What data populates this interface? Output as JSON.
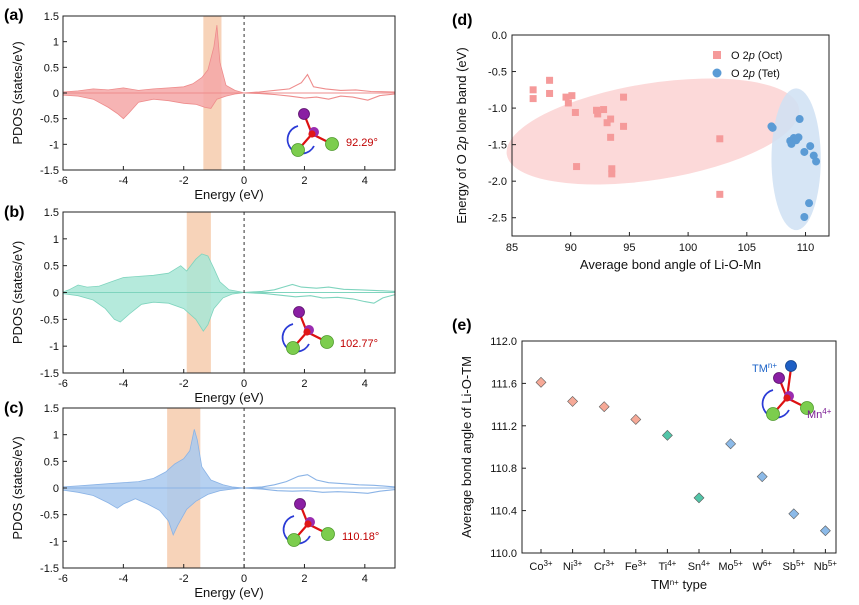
{
  "panels": {
    "a": {
      "label": "(a)",
      "angle_text": "92.29°"
    },
    "b": {
      "label": "(b)",
      "angle_text": "102.77°"
    },
    "c": {
      "label": "(c)",
      "angle_text": "110.18°"
    },
    "d": {
      "label": "(d)"
    },
    "e": {
      "label": "(e)"
    }
  },
  "pdos_common": {
    "xlabel": "Energy (eV)",
    "ylabel": "PDOS (states/eV)",
    "xlim": [
      -6,
      5
    ],
    "ylim": [
      -1.5,
      1.5
    ],
    "xticks": [
      -6,
      -4,
      -2,
      0,
      2,
      4
    ],
    "yticks": [
      -1.5,
      -1,
      -0.5,
      0,
      0.5,
      1,
      1.5
    ],
    "ytick_labels": [
      "-1.5",
      "-1",
      "-0.5",
      "0",
      "0.5",
      "1",
      "1.5"
    ],
    "xtick_labels": [
      "-6",
      "-4",
      "-2",
      "0",
      "2",
      "4"
    ],
    "band_color": "#f7d3b9"
  },
  "annot_e": {
    "tm_label": "TM",
    "tm_sup": "n+",
    "mn_label": "Mn",
    "mn_sup": "4+"
  },
  "chart_data": [
    {
      "id": "a",
      "type": "area",
      "color": "#f4a7a7",
      "edge": "#ee8c8c",
      "highlight_band": [
        -1.35,
        -0.75
      ],
      "occupied_up": [
        [
          -6,
          0.02
        ],
        [
          -5.5,
          0.04
        ],
        [
          -5,
          0.08
        ],
        [
          -4.5,
          0.06
        ],
        [
          -4,
          0.1
        ],
        [
          -3.5,
          0.05
        ],
        [
          -3,
          0.08
        ],
        [
          -2.5,
          0.1
        ],
        [
          -2,
          0.12
        ],
        [
          -1.7,
          0.18
        ],
        [
          -1.4,
          0.3
        ],
        [
          -1.2,
          0.45
        ],
        [
          -1.0,
          0.9
        ],
        [
          -0.9,
          1.32
        ],
        [
          -0.8,
          0.6
        ],
        [
          -0.6,
          0.15
        ],
        [
          -0.3,
          0.05
        ],
        [
          0,
          0
        ]
      ],
      "occupied_down": [
        [
          -6,
          -0.04
        ],
        [
          -5.5,
          -0.06
        ],
        [
          -5,
          -0.12
        ],
        [
          -4.5,
          -0.28
        ],
        [
          -4.2,
          -0.4
        ],
        [
          -4.0,
          -0.5
        ],
        [
          -3.8,
          -0.38
        ],
        [
          -3.5,
          -0.18
        ],
        [
          -3,
          -0.12
        ],
        [
          -2.5,
          -0.15
        ],
        [
          -2,
          -0.2
        ],
        [
          -1.6,
          -0.22
        ],
        [
          -1.3,
          -0.28
        ],
        [
          -1.1,
          -0.3
        ],
        [
          -0.9,
          -0.12
        ],
        [
          -0.6,
          -0.06
        ],
        [
          -0.3,
          -0.02
        ],
        [
          0,
          0
        ]
      ],
      "unocc_up": [
        [
          0,
          0
        ],
        [
          0.5,
          0.02
        ],
        [
          1,
          0.05
        ],
        [
          1.5,
          0.08
        ],
        [
          1.9,
          0.2
        ],
        [
          2.1,
          0.36
        ],
        [
          2.3,
          0.12
        ],
        [
          2.7,
          0.08
        ],
        [
          3.2,
          0.05
        ],
        [
          3.7,
          0.06
        ],
        [
          4.2,
          0.03
        ],
        [
          5,
          0.02
        ]
      ],
      "unocc_down": [
        [
          0,
          0
        ],
        [
          0.5,
          -0.01
        ],
        [
          1,
          -0.03
        ],
        [
          1.5,
          -0.06
        ],
        [
          2,
          -0.1
        ],
        [
          2.4,
          -0.08
        ],
        [
          2.8,
          -0.12
        ],
        [
          3.2,
          -0.06
        ],
        [
          3.6,
          -0.08
        ],
        [
          4.1,
          -0.14
        ],
        [
          4.5,
          -0.05
        ],
        [
          5,
          -0.02
        ]
      ]
    },
    {
      "id": "b",
      "type": "area",
      "color": "#a8e6d6",
      "edge": "#7fd4be",
      "highlight_band": [
        -1.9,
        -1.1
      ],
      "occupied_up": [
        [
          -6,
          0.01
        ],
        [
          -5.8,
          0.05
        ],
        [
          -5.5,
          0.14
        ],
        [
          -5.2,
          0.1
        ],
        [
          -4.8,
          0.12
        ],
        [
          -4.4,
          0.2
        ],
        [
          -4,
          0.28
        ],
        [
          -3.5,
          0.3
        ],
        [
          -3,
          0.32
        ],
        [
          -2.5,
          0.36
        ],
        [
          -2.1,
          0.5
        ],
        [
          -1.9,
          0.4
        ],
        [
          -1.6,
          0.62
        ],
        [
          -1.4,
          0.72
        ],
        [
          -1.2,
          0.68
        ],
        [
          -1.0,
          0.45
        ],
        [
          -0.8,
          0.2
        ],
        [
          -0.5,
          0.05
        ],
        [
          0,
          0
        ]
      ],
      "occupied_down": [
        [
          -6,
          -0.02
        ],
        [
          -5.5,
          -0.06
        ],
        [
          -5,
          -0.14
        ],
        [
          -4.6,
          -0.3
        ],
        [
          -4.3,
          -0.5
        ],
        [
          -4.1,
          -0.55
        ],
        [
          -3.8,
          -0.4
        ],
        [
          -3.4,
          -0.22
        ],
        [
          -3,
          -0.18
        ],
        [
          -2.5,
          -0.2
        ],
        [
          -2,
          -0.3
        ],
        [
          -1.6,
          -0.5
        ],
        [
          -1.35,
          -0.72
        ],
        [
          -1.2,
          -0.6
        ],
        [
          -1.0,
          -0.3
        ],
        [
          -0.7,
          -0.1
        ],
        [
          -0.4,
          -0.03
        ],
        [
          0,
          0
        ]
      ],
      "unocc_up": [
        [
          0,
          0
        ],
        [
          0.6,
          0.02
        ],
        [
          1,
          0.05
        ],
        [
          1.3,
          0.1
        ],
        [
          1.6,
          0.15
        ],
        [
          1.9,
          0.1
        ],
        [
          2.4,
          0.08
        ],
        [
          2.8,
          0.1
        ],
        [
          3.3,
          0.06
        ],
        [
          3.8,
          0.05
        ],
        [
          4.3,
          0.04
        ],
        [
          5,
          0.02
        ]
      ],
      "unocc_down": [
        [
          0,
          0
        ],
        [
          0.7,
          -0.02
        ],
        [
          1.2,
          -0.05
        ],
        [
          1.7,
          -0.08
        ],
        [
          2.2,
          -0.06
        ],
        [
          2.6,
          -0.1
        ],
        [
          3.1,
          -0.09
        ],
        [
          3.6,
          -0.12
        ],
        [
          4.0,
          -0.17
        ],
        [
          4.3,
          -0.2
        ],
        [
          4.6,
          -0.1
        ],
        [
          5,
          -0.04
        ]
      ]
    },
    {
      "id": "c",
      "type": "area",
      "color": "#a9c9ef",
      "edge": "#8ab3e6",
      "highlight_band": [
        -2.55,
        -1.45
      ],
      "occupied_up": [
        [
          -6,
          0.02
        ],
        [
          -5.5,
          0.04
        ],
        [
          -5,
          0.06
        ],
        [
          -4.5,
          0.08
        ],
        [
          -4,
          0.1
        ],
        [
          -3.5,
          0.12
        ],
        [
          -3,
          0.18
        ],
        [
          -2.6,
          0.3
        ],
        [
          -2.3,
          0.45
        ],
        [
          -2.0,
          0.55
        ],
        [
          -1.8,
          0.7
        ],
        [
          -1.65,
          1.1
        ],
        [
          -1.55,
          0.9
        ],
        [
          -1.4,
          0.4
        ],
        [
          -1.1,
          0.15
        ],
        [
          -0.7,
          0.06
        ],
        [
          -0.4,
          0.02
        ],
        [
          0,
          0
        ]
      ],
      "occupied_down": [
        [
          -6,
          -0.04
        ],
        [
          -5.5,
          -0.08
        ],
        [
          -5,
          -0.14
        ],
        [
          -4.5,
          -0.28
        ],
        [
          -4.2,
          -0.38
        ],
        [
          -4,
          -0.3
        ],
        [
          -3.6,
          -0.2
        ],
        [
          -3.2,
          -0.3
        ],
        [
          -2.8,
          -0.42
        ],
        [
          -2.5,
          -0.62
        ],
        [
          -2.35,
          -0.88
        ],
        [
          -2.2,
          -0.7
        ],
        [
          -1.9,
          -0.4
        ],
        [
          -1.6,
          -0.25
        ],
        [
          -1.2,
          -0.12
        ],
        [
          -0.8,
          -0.05
        ],
        [
          -0.4,
          -0.02
        ],
        [
          0,
          0
        ]
      ],
      "unocc_up": [
        [
          0,
          0
        ],
        [
          0.6,
          0.02
        ],
        [
          1.0,
          0.06
        ],
        [
          1.4,
          0.12
        ],
        [
          1.8,
          0.22
        ],
        [
          2.1,
          0.25
        ],
        [
          2.4,
          0.15
        ],
        [
          2.8,
          0.1
        ],
        [
          3.3,
          0.08
        ],
        [
          3.8,
          0.06
        ],
        [
          4.3,
          0.05
        ],
        [
          5,
          0.02
        ]
      ],
      "unocc_down": [
        [
          0,
          0
        ],
        [
          0.6,
          -0.02
        ],
        [
          1.1,
          -0.05
        ],
        [
          1.6,
          -0.06
        ],
        [
          2.1,
          -0.05
        ],
        [
          2.6,
          -0.08
        ],
        [
          3.1,
          -0.07
        ],
        [
          3.6,
          -0.08
        ],
        [
          4.1,
          -0.1
        ],
        [
          4.5,
          -0.06
        ],
        [
          5,
          -0.03
        ]
      ]
    },
    {
      "id": "d",
      "type": "scatter",
      "xlabel": "Average bond angle of Li-O-Mn",
      "ylabel_parts": [
        "Energy of O 2",
        "p",
        " lone band (eV)"
      ],
      "xlim": [
        85,
        112
      ],
      "ylim": [
        -2.75,
        0
      ],
      "xticks": [
        85,
        90,
        95,
        100,
        105,
        110
      ],
      "yticks": [
        0.0,
        -0.5,
        -1.0,
        -1.5,
        -2.0,
        -2.5
      ],
      "ytick_labels": [
        "0.0",
        "-0.5",
        "-1.0",
        "-1.5",
        "-2.0",
        "-2.5"
      ],
      "series": [
        {
          "name_parts": [
            "O 2",
            "p",
            " (Oct)"
          ],
          "marker": "square",
          "color": "#f59a9a",
          "ellipse": {
            "cx": 97,
            "cy": -1.32,
            "rx": 12.6,
            "ry": 0.66,
            "rot_deg": -9,
            "fill": "#fbd2d2"
          },
          "points": [
            [
              86.8,
              -0.75
            ],
            [
              86.8,
              -0.87
            ],
            [
              88.2,
              -0.62
            ],
            [
              88.2,
              -0.8
            ],
            [
              89.6,
              -0.85
            ],
            [
              89.8,
              -0.93
            ],
            [
              90.1,
              -0.83
            ],
            [
              90.4,
              -1.06
            ],
            [
              90.5,
              -1.8
            ],
            [
              92.2,
              -1.03
            ],
            [
              92.3,
              -1.08
            ],
            [
              92.8,
              -1.02
            ],
            [
              93.1,
              -1.2
            ],
            [
              93.4,
              -1.15
            ],
            [
              93.4,
              -1.4
            ],
            [
              93.5,
              -1.83
            ],
            [
              93.5,
              -1.9
            ],
            [
              94.5,
              -0.85
            ],
            [
              94.5,
              -1.25
            ],
            [
              102.7,
              -1.42
            ],
            [
              102.7,
              -2.18
            ]
          ]
        },
        {
          "name_parts": [
            "O 2",
            "p",
            " (Tet)"
          ],
          "marker": "circle",
          "color": "#5b9bd5",
          "ellipse": {
            "cx": 109.2,
            "cy": -1.7,
            "rx": 2.1,
            "ry": 0.97,
            "rot_deg": 0,
            "fill": "#cfe0f3"
          },
          "points": [
            [
              107.1,
              -1.25
            ],
            [
              107.2,
              -1.27
            ],
            [
              108.7,
              -1.45
            ],
            [
              108.8,
              -1.49
            ],
            [
              109.0,
              -1.41
            ],
            [
              109.2,
              -1.44
            ],
            [
              109.4,
              -1.4
            ],
            [
              109.5,
              -1.15
            ],
            [
              109.9,
              -1.6
            ],
            [
              110.4,
              -1.52
            ],
            [
              110.7,
              -1.65
            ],
            [
              110.9,
              -1.73
            ],
            [
              110.3,
              -2.3
            ],
            [
              109.9,
              -2.49
            ]
          ]
        }
      ],
      "legend_position": "top-right"
    },
    {
      "id": "e",
      "type": "scatter",
      "xlabel_parts": [
        "TM",
        "n+",
        " type"
      ],
      "ylabel": "Average bond angle of Li-O-TM",
      "ylim": [
        110.0,
        112.0
      ],
      "yticks": [
        110.0,
        110.4,
        110.8,
        111.2,
        111.6,
        112.0
      ],
      "ytick_labels": [
        "110.0",
        "110.4",
        "110.8",
        "111.2",
        "111.6",
        "112.0"
      ],
      "categories": [
        {
          "base": "Co",
          "sup": "3+"
        },
        {
          "base": "Ni",
          "sup": "3+"
        },
        {
          "base": "Cr",
          "sup": "3+"
        },
        {
          "base": "Fe",
          "sup": "3+"
        },
        {
          "base": "Ti",
          "sup": "4+"
        },
        {
          "base": "Sn",
          "sup": "4+"
        },
        {
          "base": "Mo",
          "sup": "5+"
        },
        {
          "base": "W",
          "sup": "6+"
        },
        {
          "base": "Sb",
          "sup": "5+"
        },
        {
          "base": "Nb",
          "sup": "5+"
        }
      ],
      "values": [
        111.61,
        111.43,
        111.38,
        111.26,
        111.11,
        110.52,
        111.03,
        110.72,
        110.37,
        110.21
      ],
      "marker_colors": [
        "#f5a08c",
        "#f5a08c",
        "#f5a08c",
        "#f5a08c",
        "#3fbf9f",
        "#3fbf9f",
        "#7fb3e6",
        "#7fb3e6",
        "#7fb3e6",
        "#7fb3e6"
      ]
    }
  ]
}
